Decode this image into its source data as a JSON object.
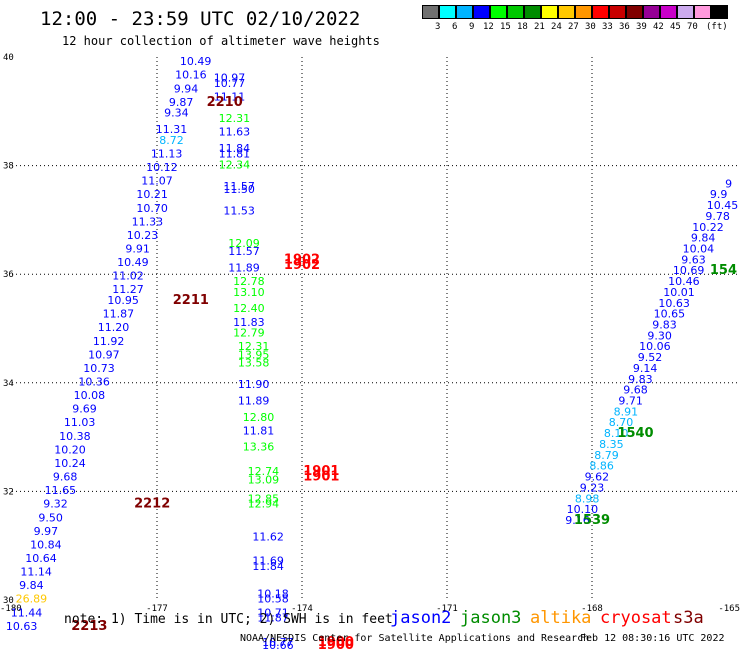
{
  "title": "12:00 - 23:59 UTC 02/10/2022",
  "subtitle": "12 hour collection of altimeter wave heights",
  "colorbar": {
    "colors": [
      "#707070",
      "#00ffff",
      "#00b4ff",
      "#0000ff",
      "#00ff00",
      "#00c800",
      "#008c00",
      "#ffff00",
      "#ffc800",
      "#ff9600",
      "#ff0000",
      "#c80000",
      "#800000",
      "#960096",
      "#c800c8",
      "#ccaaee",
      "#ff99dd",
      "#000000"
    ],
    "labels": [
      "3",
      "6",
      "9",
      "12",
      "15",
      "18",
      "21",
      "24",
      "27",
      "30",
      "33",
      "36",
      "39",
      "42",
      "45",
      "70"
    ],
    "unit": "(ft)"
  },
  "note": "note: 1) Time is in UTC; 2) SWH is in feet",
  "legend": [
    {
      "name": "jason2",
      "color": "#0000ff"
    },
    {
      "name": "jason3",
      "color": "#008c00"
    },
    {
      "name": "altika",
      "color": "#ff9600"
    },
    {
      "name": "cryosat",
      "color": "#ff0000"
    },
    {
      "name": "s3a",
      "color": "#800000"
    }
  ],
  "credit": "NOAA/NESDIS Center for Satellite Applications and Research",
  "timestamp": "Feb 12 08:30:16 UTC 2022",
  "chart_data": {
    "type": "scatter",
    "xlim": [
      -180,
      -165
    ],
    "ylim": [
      30,
      40
    ],
    "x_ticks": [
      "-180",
      "-177",
      "-174",
      "-171",
      "-168",
      "-165"
    ],
    "y_ticks": [
      "30",
      "32",
      "34",
      "36",
      "38",
      "40"
    ],
    "grid": true,
    "color_scale": {
      "breaks": [
        3,
        6,
        9,
        12,
        15,
        18,
        21,
        24,
        27,
        30,
        33,
        36,
        39,
        42,
        45,
        70
      ],
      "colors": [
        "#707070",
        "#00ffff",
        "#00b4ff",
        "#0000ff",
        "#00ff00",
        "#00c800",
        "#008c00",
        "#ffff00",
        "#ffc800",
        "#ff9600",
        "#ff0000",
        "#c80000",
        "#800000",
        "#960096",
        "#c800c8",
        "#ccaaee",
        "#ff99dd",
        "#000000"
      ]
    },
    "points": [
      {
        "x": -176.2,
        "y": 39.85,
        "v": "10.49"
      },
      {
        "x": -176.3,
        "y": 39.6,
        "v": "10.16"
      },
      {
        "x": -176.4,
        "y": 39.35,
        "v": "9.94"
      },
      {
        "x": -176.5,
        "y": 39.1,
        "v": "9.87"
      },
      {
        "x": -176.6,
        "y": 38.9,
        "v": "9.34"
      },
      {
        "x": -176.7,
        "y": 38.6,
        "v": "11.31"
      },
      {
        "x": -176.7,
        "y": 38.4,
        "v": "8.72"
      },
      {
        "x": -176.8,
        "y": 38.15,
        "v": "11.13"
      },
      {
        "x": -176.9,
        "y": 37.9,
        "v": "10.12"
      },
      {
        "x": -177.0,
        "y": 37.65,
        "v": "11.07"
      },
      {
        "x": -177.1,
        "y": 37.4,
        "v": "10.21"
      },
      {
        "x": -177.1,
        "y": 37.15,
        "v": "10.70"
      },
      {
        "x": -177.2,
        "y": 36.9,
        "v": "11.33"
      },
      {
        "x": -177.3,
        "y": 36.65,
        "v": "10.23"
      },
      {
        "x": -177.4,
        "y": 36.4,
        "v": "9.91"
      },
      {
        "x": -177.5,
        "y": 36.15,
        "v": "10.49"
      },
      {
        "x": -177.6,
        "y": 35.9,
        "v": "11.02"
      },
      {
        "x": -177.6,
        "y": 35.65,
        "v": "11.27"
      },
      {
        "x": -177.7,
        "y": 35.45,
        "v": "10.95"
      },
      {
        "x": -177.8,
        "y": 35.2,
        "v": "11.87"
      },
      {
        "x": -177.9,
        "y": 34.95,
        "v": "11.20"
      },
      {
        "x": -178.0,
        "y": 34.7,
        "v": "11.92"
      },
      {
        "x": -178.1,
        "y": 34.45,
        "v": "10.97"
      },
      {
        "x": -178.2,
        "y": 34.2,
        "v": "10.73"
      },
      {
        "x": -178.3,
        "y": 33.95,
        "v": "10.36"
      },
      {
        "x": -178.4,
        "y": 33.7,
        "v": "10.08"
      },
      {
        "x": -178.5,
        "y": 33.45,
        "v": "9.69"
      },
      {
        "x": -178.6,
        "y": 33.2,
        "v": "11.03"
      },
      {
        "x": -178.7,
        "y": 32.95,
        "v": "10.38"
      },
      {
        "x": -178.8,
        "y": 32.7,
        "v": "10.20"
      },
      {
        "x": -178.8,
        "y": 32.45,
        "v": "10.24"
      },
      {
        "x": -178.9,
        "y": 32.2,
        "v": "9.68"
      },
      {
        "x": -179.0,
        "y": 31.95,
        "v": "11.65"
      },
      {
        "x": -179.1,
        "y": 31.7,
        "v": "9.32"
      },
      {
        "x": -179.2,
        "y": 31.45,
        "v": "9.50"
      },
      {
        "x": -179.3,
        "y": 31.2,
        "v": "9.97"
      },
      {
        "x": -179.3,
        "y": 30.95,
        "v": "10.84"
      },
      {
        "x": -179.4,
        "y": 30.7,
        "v": "10.64"
      },
      {
        "x": -179.5,
        "y": 30.45,
        "v": "11.14"
      },
      {
        "x": -179.6,
        "y": 30.2,
        "v": "9.84"
      },
      {
        "x": -179.6,
        "y": 29.95,
        "v": "26.89"
      },
      {
        "x": -179.7,
        "y": 29.7,
        "v": "11.44"
      },
      {
        "x": -179.8,
        "y": 29.45,
        "v": "10.63"
      },
      {
        "x": -175.5,
        "y": 39.55,
        "v": "10.97"
      },
      {
        "x": -175.5,
        "y": 39.45,
        "v": "10.77"
      },
      {
        "x": -175.5,
        "y": 39.2,
        "v": "11.11"
      },
      {
        "x": -175.4,
        "y": 38.8,
        "v": "12.31"
      },
      {
        "x": -175.4,
        "y": 38.55,
        "v": "11.63"
      },
      {
        "x": -175.4,
        "y": 38.25,
        "v": "11.84"
      },
      {
        "x": -175.4,
        "y": 38.15,
        "v": "11.81"
      },
      {
        "x": -175.4,
        "y": 37.95,
        "v": "12.34"
      },
      {
        "x": -175.3,
        "y": 37.55,
        "v": "11.57"
      },
      {
        "x": -175.3,
        "y": 37.5,
        "v": "11.50"
      },
      {
        "x": -175.3,
        "y": 37.1,
        "v": "11.53"
      },
      {
        "x": -175.2,
        "y": 36.5,
        "v": "12.09"
      },
      {
        "x": -175.2,
        "y": 36.35,
        "v": "11.57"
      },
      {
        "x": -175.2,
        "y": 36.05,
        "v": "11.89"
      },
      {
        "x": -175.1,
        "y": 35.8,
        "v": "12.78"
      },
      {
        "x": -175.1,
        "y": 35.6,
        "v": "13.10"
      },
      {
        "x": -175.1,
        "y": 35.3,
        "v": "12.40"
      },
      {
        "x": -175.1,
        "y": 35.05,
        "v": "11.83"
      },
      {
        "x": -175.1,
        "y": 34.85,
        "v": "12.79"
      },
      {
        "x": -175.0,
        "y": 34.6,
        "v": "12.31"
      },
      {
        "x": -175.0,
        "y": 34.45,
        "v": "13.95"
      },
      {
        "x": -175.0,
        "y": 34.3,
        "v": "13.58"
      },
      {
        "x": -175.0,
        "y": 33.9,
        "v": "11.90"
      },
      {
        "x": -175.0,
        "y": 33.6,
        "v": "11.89"
      },
      {
        "x": -174.9,
        "y": 33.3,
        "v": "12.80"
      },
      {
        "x": -174.9,
        "y": 33.05,
        "v": "11.81"
      },
      {
        "x": -174.9,
        "y": 32.75,
        "v": "13.36"
      },
      {
        "x": -174.8,
        "y": 32.3,
        "v": "12.74"
      },
      {
        "x": -174.8,
        "y": 32.15,
        "v": "13.09"
      },
      {
        "x": -174.8,
        "y": 31.8,
        "v": "12.85"
      },
      {
        "x": -174.8,
        "y": 31.7,
        "v": "12.94"
      },
      {
        "x": -174.7,
        "y": 31.1,
        "v": "11.62"
      },
      {
        "x": -174.7,
        "y": 30.65,
        "v": "11.69"
      },
      {
        "x": -174.7,
        "y": 30.55,
        "v": "11.84"
      },
      {
        "x": -174.6,
        "y": 30.05,
        "v": "10.18"
      },
      {
        "x": -174.6,
        "y": 29.95,
        "v": "10.58"
      },
      {
        "x": -174.6,
        "y": 29.7,
        "v": "10.71"
      },
      {
        "x": -174.6,
        "y": 29.6,
        "v": "11.87"
      },
      {
        "x": -174.5,
        "y": 29.15,
        "v": "10.77"
      },
      {
        "x": -174.5,
        "y": 29.1,
        "v": "10.66"
      },
      {
        "x": -165.1,
        "y": 37.6,
        "v": "9"
      },
      {
        "x": -165.2,
        "y": 37.4,
        "v": "9.9"
      },
      {
        "x": -165.3,
        "y": 37.2,
        "v": "10.45"
      },
      {
        "x": -165.4,
        "y": 37.0,
        "v": "9.78"
      },
      {
        "x": -165.6,
        "y": 36.8,
        "v": "10.22"
      },
      {
        "x": -165.7,
        "y": 36.6,
        "v": "9.84"
      },
      {
        "x": -165.8,
        "y": 36.4,
        "v": "10.04"
      },
      {
        "x": -165.9,
        "y": 36.2,
        "v": "9.63"
      },
      {
        "x": -166.0,
        "y": 36.0,
        "v": "10.69"
      },
      {
        "x": -166.1,
        "y": 35.8,
        "v": "10.46"
      },
      {
        "x": -166.2,
        "y": 35.6,
        "v": "10.01"
      },
      {
        "x": -166.3,
        "y": 35.4,
        "v": "10.63"
      },
      {
        "x": -166.4,
        "y": 35.2,
        "v": "10.65"
      },
      {
        "x": -166.5,
        "y": 35.0,
        "v": "9.83"
      },
      {
        "x": -166.6,
        "y": 34.8,
        "v": "9.30"
      },
      {
        "x": -166.7,
        "y": 34.6,
        "v": "10.06"
      },
      {
        "x": -166.8,
        "y": 34.4,
        "v": "9.52"
      },
      {
        "x": -166.9,
        "y": 34.2,
        "v": "9.14"
      },
      {
        "x": -167.0,
        "y": 34.0,
        "v": "9.83"
      },
      {
        "x": -167.1,
        "y": 33.8,
        "v": "9.68"
      },
      {
        "x": -167.2,
        "y": 33.6,
        "v": "9.71"
      },
      {
        "x": -167.3,
        "y": 33.4,
        "v": "8.91"
      },
      {
        "x": -167.4,
        "y": 33.2,
        "v": "8.70"
      },
      {
        "x": -167.5,
        "y": 33.0,
        "v": "8.10"
      },
      {
        "x": -167.6,
        "y": 32.8,
        "v": "8.35"
      },
      {
        "x": -167.7,
        "y": 32.6,
        "v": "8.79"
      },
      {
        "x": -167.8,
        "y": 32.4,
        "v": "8.86"
      },
      {
        "x": -167.9,
        "y": 32.2,
        "v": "9.62"
      },
      {
        "x": -168.0,
        "y": 32.0,
        "v": "9.23"
      },
      {
        "x": -168.1,
        "y": 31.8,
        "v": "8.98"
      },
      {
        "x": -168.2,
        "y": 31.6,
        "v": "10.10"
      },
      {
        "x": -168.3,
        "y": 31.4,
        "v": "9.16"
      }
    ],
    "pass_labels": [
      {
        "x": -175.6,
        "y": 39.1,
        "text": "2210",
        "color": "#800000"
      },
      {
        "x": -176.3,
        "y": 35.45,
        "text": "2211",
        "color": "#800000"
      },
      {
        "x": -177.1,
        "y": 31.7,
        "text": "2212",
        "color": "#800000"
      },
      {
        "x": -178.4,
        "y": 29.45,
        "text": "2213",
        "color": "#800000"
      },
      {
        "x": -174.0,
        "y": 36.2,
        "text": "1902",
        "color": "#ff0000"
      },
      {
        "x": -174.0,
        "y": 36.1,
        "text": "1902",
        "color": "#ff0000"
      },
      {
        "x": -173.6,
        "y": 32.3,
        "text": "1901",
        "color": "#ff0000"
      },
      {
        "x": -173.6,
        "y": 32.2,
        "text": "1901",
        "color": "#ff0000"
      },
      {
        "x": -173.3,
        "y": 29.15,
        "text": "1900",
        "color": "#ff0000"
      },
      {
        "x": -173.3,
        "y": 29.1,
        "text": "1900",
        "color": "#ff0000"
      },
      {
        "x": -165.0,
        "y": 36.0,
        "text": "154",
        "color": "#008c00"
      },
      {
        "x": -167.1,
        "y": 33.0,
        "text": "1540",
        "color": "#008c00"
      },
      {
        "x": -168.0,
        "y": 31.4,
        "text": "1539",
        "color": "#008c00"
      }
    ]
  }
}
